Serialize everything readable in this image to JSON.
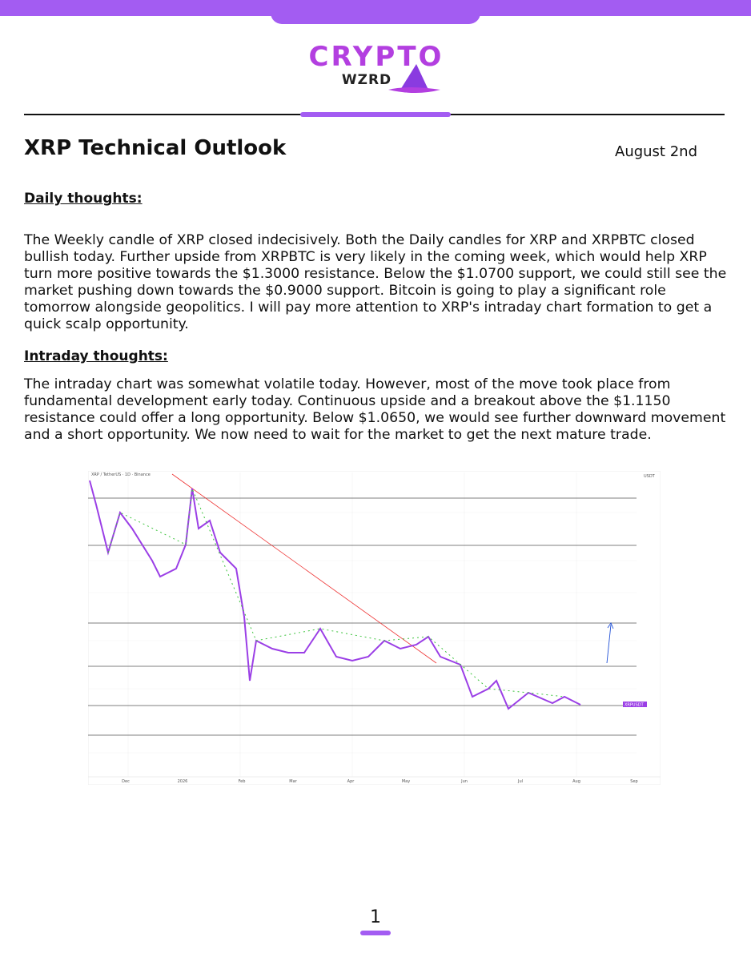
{
  "header": {
    "logo_top": "CRYPTO",
    "logo_bottom": "WZRD"
  },
  "title": "XRP Technical Outlook",
  "date": "August 2nd",
  "sections": [
    {
      "heading": "Daily thoughts:",
      "text": "The Weekly candle of XRP closed indecisively. Both the Daily candles for XRP and XRPBTC closed bullish today. Further upside from XRPBTC is very likely in the coming week, which would help XRP turn more positive towards the $1.3000 resistance. Below the $1.0700 support, we could still see the market pushing down towards the $0.9000 support. Bitcoin is going to play a significant role tomorrow alongside geopolitics. I will pay more attention to XRP's intraday chart formation to get a quick scalp opportunity."
    },
    {
      "heading": "Intraday thoughts:",
      "text": "The intraday chart was somewhat volatile today. However, most of the move took place from fundamental development early today. Continuous upside and a breakout above the $1.1150 resistance could offer a long opportunity. Below $1.0650, we would see further downward movement and a short opportunity. We now need to wait for the market to get the next mature trade."
    }
  ],
  "chart": {
    "legend": "XRP / TetherUS · 1D · Binance",
    "currency": "USDT",
    "symbol_tag": "XRPUSDT",
    "months": [
      "Dec",
      "2026",
      "Feb",
      "Mar",
      "Apr",
      "May",
      "Jun",
      "Jul",
      "Aug",
      "Sep"
    ]
  },
  "footer": {
    "page": "1"
  }
}
